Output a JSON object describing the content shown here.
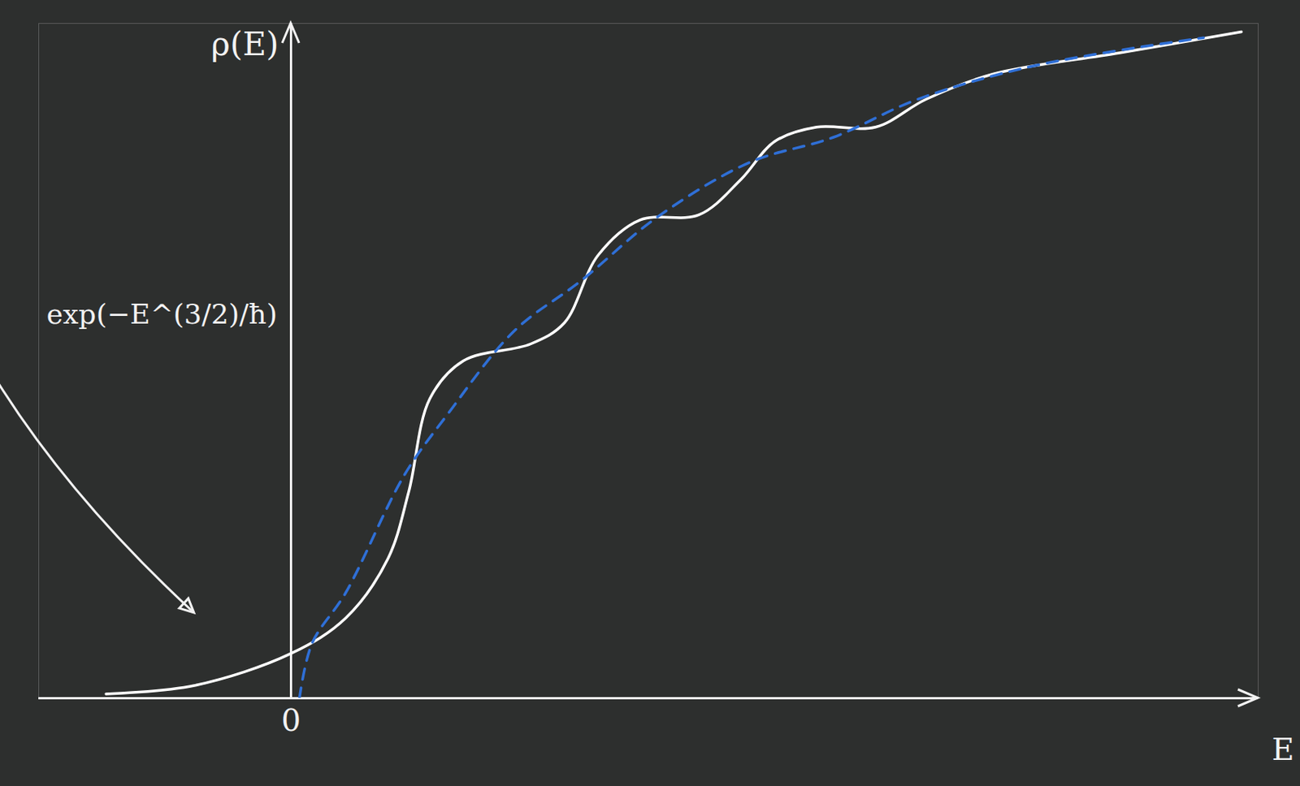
{
  "chart_data": {
    "type": "line",
    "x_label": "E",
    "y_label": "ρ(E)",
    "xlim": [
      -3,
      11.5
    ],
    "ylim": [
      0,
      8
    ],
    "xticks": [
      0
    ],
    "yticks": [],
    "tick_labels": "x",
    "grid": false,
    "series": [
      {
        "color": "#ffffff",
        "line_style": "solid",
        "marker": "none",
        "x": [
          -2.2,
          -1.15,
          0,
          0.65,
          1.15,
          1.4,
          1.65,
          2.05,
          2.85,
          3.25,
          3.65,
          4.15,
          4.85,
          5.35,
          5.75,
          6.25,
          6.95,
          7.55,
          8.35,
          9.85,
          11.3
        ],
        "values": [
          0.05,
          0.15,
          0.53,
          0.95,
          1.65,
          2.45,
          3.55,
          4.0,
          4.2,
          4.45,
          5.25,
          5.67,
          5.73,
          6.15,
          6.6,
          6.77,
          6.77,
          7.1,
          7.4,
          7.65,
          7.9
        ]
      },
      {
        "color": "#2f6fd6",
        "line_style": "dashed",
        "marker": "none",
        "x": [
          0.1,
          0.25,
          0.65,
          1.35,
          1.85,
          2.65,
          3.45,
          4.35,
          5.45,
          6.45,
          7.45,
          8.85,
          10.85
        ],
        "values": [
          0.0,
          0.65,
          1.25,
          2.65,
          3.35,
          4.35,
          4.95,
          5.7,
          6.35,
          6.65,
          7.1,
          7.5,
          7.83
        ]
      }
    ],
    "annotation": {
      "text": "exp(−E^(3/2)/ħ)",
      "x": -1.15,
      "y": 0.9
    }
  }
}
